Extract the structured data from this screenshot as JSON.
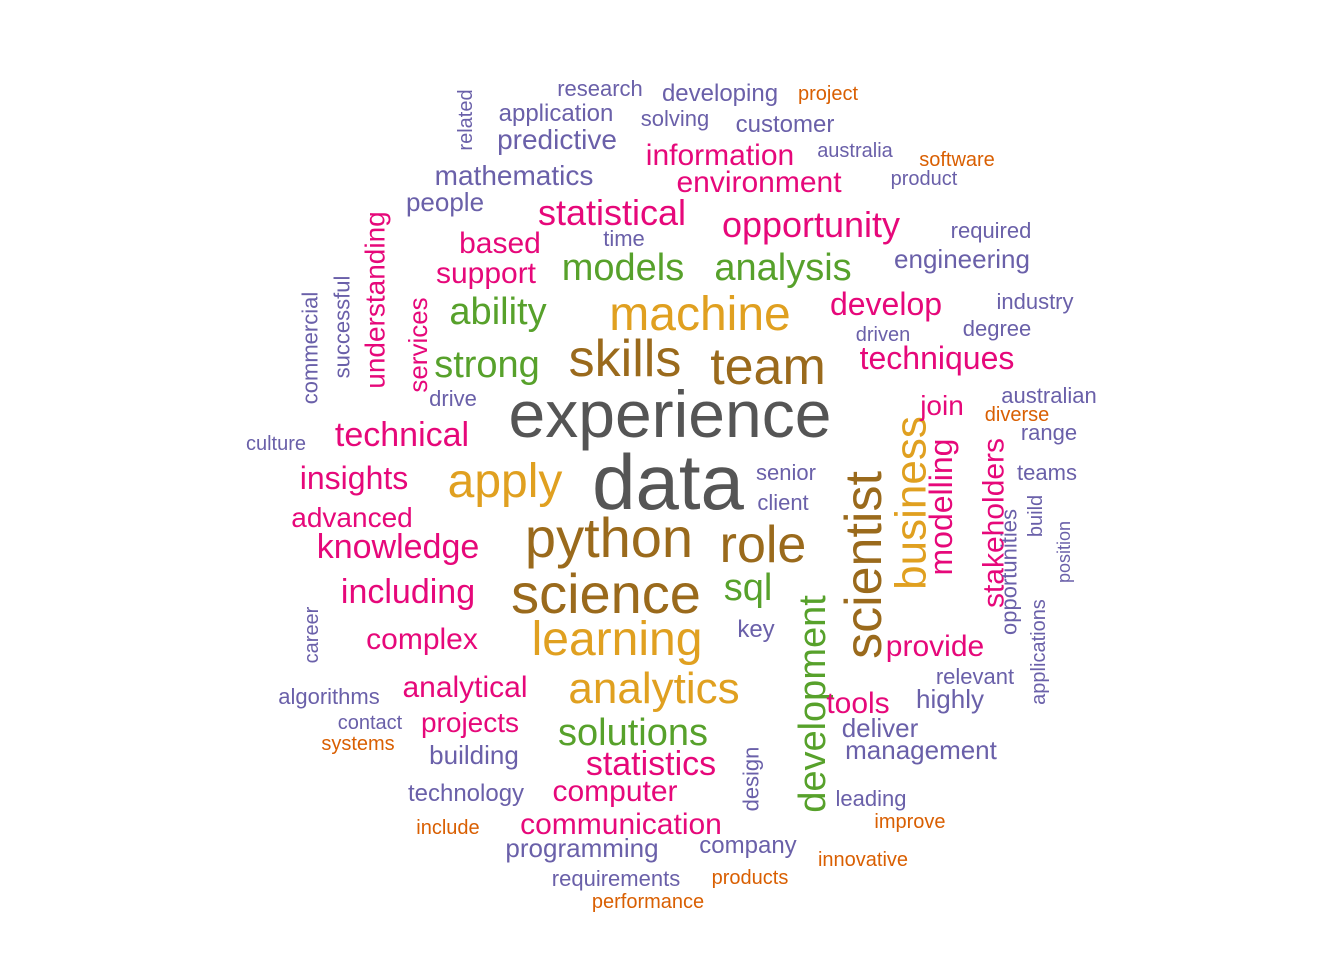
{
  "colors": {
    "gray": "#555555",
    "brown": "#9a6a1c",
    "gold": "#e0a020",
    "green": "#57a12b",
    "magenta": "#e6087a",
    "purple": "#6a60a9",
    "orange": "#d95f02"
  },
  "words": [
    {
      "text": "data",
      "group": "gray"
    },
    {
      "text": "experience",
      "group": "gray"
    },
    {
      "text": "python",
      "group": "brown"
    },
    {
      "text": "science",
      "group": "brown"
    },
    {
      "text": "skills",
      "group": "brown"
    },
    {
      "text": "team",
      "group": "brown"
    },
    {
      "text": "role",
      "group": "brown"
    },
    {
      "text": "scientist",
      "group": "brown"
    },
    {
      "text": "machine",
      "group": "gold"
    },
    {
      "text": "learning",
      "group": "gold"
    },
    {
      "text": "apply",
      "group": "gold"
    },
    {
      "text": "analytics",
      "group": "gold"
    },
    {
      "text": "business",
      "group": "gold"
    },
    {
      "text": "models",
      "group": "green"
    },
    {
      "text": "analysis",
      "group": "green"
    },
    {
      "text": "ability",
      "group": "green"
    },
    {
      "text": "strong",
      "group": "green"
    },
    {
      "text": "solutions",
      "group": "green"
    },
    {
      "text": "sql",
      "group": "green"
    },
    {
      "text": "development",
      "group": "green"
    },
    {
      "text": "statistical",
      "group": "magenta"
    },
    {
      "text": "opportunity",
      "group": "magenta"
    },
    {
      "text": "information",
      "group": "magenta"
    },
    {
      "text": "environment",
      "group": "magenta"
    },
    {
      "text": "based",
      "group": "magenta"
    },
    {
      "text": "support",
      "group": "magenta"
    },
    {
      "text": "develop",
      "group": "magenta"
    },
    {
      "text": "techniques",
      "group": "magenta"
    },
    {
      "text": "technical",
      "group": "magenta"
    },
    {
      "text": "insights",
      "group": "magenta"
    },
    {
      "text": "advanced",
      "group": "magenta"
    },
    {
      "text": "knowledge",
      "group": "magenta"
    },
    {
      "text": "including",
      "group": "magenta"
    },
    {
      "text": "complex",
      "group": "magenta"
    },
    {
      "text": "analytical",
      "group": "magenta"
    },
    {
      "text": "projects",
      "group": "magenta"
    },
    {
      "text": "statistics",
      "group": "magenta"
    },
    {
      "text": "computer",
      "group": "magenta"
    },
    {
      "text": "communication",
      "group": "magenta"
    },
    {
      "text": "provide",
      "group": "magenta"
    },
    {
      "text": "tools",
      "group": "magenta"
    },
    {
      "text": "join",
      "group": "magenta"
    },
    {
      "text": "modelling",
      "group": "magenta"
    },
    {
      "text": "stakeholders",
      "group": "magenta"
    },
    {
      "text": "understanding",
      "group": "magenta"
    },
    {
      "text": "services",
      "group": "magenta"
    },
    {
      "text": "research",
      "group": "purple"
    },
    {
      "text": "developing",
      "group": "purple"
    },
    {
      "text": "application",
      "group": "purple"
    },
    {
      "text": "solving",
      "group": "purple"
    },
    {
      "text": "customer",
      "group": "purple"
    },
    {
      "text": "predictive",
      "group": "purple"
    },
    {
      "text": "australia",
      "group": "purple"
    },
    {
      "text": "mathematics",
      "group": "purple"
    },
    {
      "text": "product",
      "group": "purple"
    },
    {
      "text": "people",
      "group": "purple"
    },
    {
      "text": "time",
      "group": "purple"
    },
    {
      "text": "required",
      "group": "purple"
    },
    {
      "text": "engineering",
      "group": "purple"
    },
    {
      "text": "industry",
      "group": "purple"
    },
    {
      "text": "driven",
      "group": "purple"
    },
    {
      "text": "degree",
      "group": "purple"
    },
    {
      "text": "australian",
      "group": "purple"
    },
    {
      "text": "drive",
      "group": "purple"
    },
    {
      "text": "culture",
      "group": "purple"
    },
    {
      "text": "range",
      "group": "purple"
    },
    {
      "text": "senior",
      "group": "purple"
    },
    {
      "text": "teams",
      "group": "purple"
    },
    {
      "text": "client",
      "group": "purple"
    },
    {
      "text": "key",
      "group": "purple"
    },
    {
      "text": "relevant",
      "group": "purple"
    },
    {
      "text": "highly",
      "group": "purple"
    },
    {
      "text": "algorithms",
      "group": "purple"
    },
    {
      "text": "contact",
      "group": "purple"
    },
    {
      "text": "deliver",
      "group": "purple"
    },
    {
      "text": "management",
      "group": "purple"
    },
    {
      "text": "building",
      "group": "purple"
    },
    {
      "text": "technology",
      "group": "purple"
    },
    {
      "text": "leading",
      "group": "purple"
    },
    {
      "text": "programming",
      "group": "purple"
    },
    {
      "text": "company",
      "group": "purple"
    },
    {
      "text": "requirements",
      "group": "purple"
    },
    {
      "text": "related",
      "group": "purple"
    },
    {
      "text": "commercial",
      "group": "purple"
    },
    {
      "text": "successful",
      "group": "purple"
    },
    {
      "text": "career",
      "group": "purple"
    },
    {
      "text": "design",
      "group": "purple"
    },
    {
      "text": "opportunities",
      "group": "purple"
    },
    {
      "text": "build",
      "group": "purple"
    },
    {
      "text": "position",
      "group": "purple"
    },
    {
      "text": "applications",
      "group": "purple"
    },
    {
      "text": "project",
      "group": "orange"
    },
    {
      "text": "software",
      "group": "orange"
    },
    {
      "text": "diverse",
      "group": "orange"
    },
    {
      "text": "systems",
      "group": "orange"
    },
    {
      "text": "include",
      "group": "orange"
    },
    {
      "text": "improve",
      "group": "orange"
    },
    {
      "text": "innovative",
      "group": "orange"
    },
    {
      "text": "products",
      "group": "orange"
    },
    {
      "text": "performance",
      "group": "orange"
    }
  ]
}
